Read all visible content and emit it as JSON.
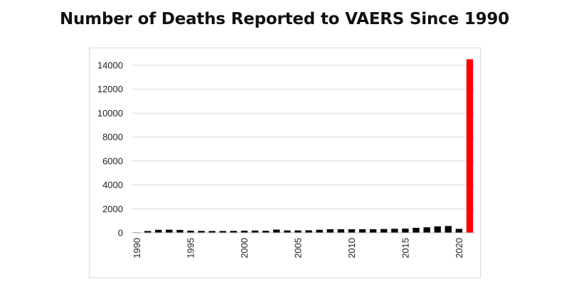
{
  "chart_data": {
    "type": "bar",
    "title": "Number of Deaths Reported to VAERS Since 1990",
    "xlabel": "",
    "ylabel": "",
    "ylim": [
      0,
      15000
    ],
    "y_ticks": [
      0,
      2000,
      4000,
      6000,
      8000,
      10000,
      12000,
      14000
    ],
    "x_tick_labels": [
      "1990",
      "1995",
      "2000",
      "2005",
      "2010",
      "2015",
      "2020"
    ],
    "grid": true,
    "legend": "none",
    "categories": [
      1990,
      1991,
      1992,
      1993,
      1994,
      1995,
      1996,
      1997,
      1998,
      1999,
      2000,
      2001,
      2002,
      2003,
      2004,
      2005,
      2006,
      2007,
      2008,
      2009,
      2010,
      2011,
      2012,
      2013,
      2014,
      2015,
      2016,
      2017,
      2018,
      2019,
      2020,
      2021
    ],
    "values": [
      40,
      150,
      250,
      260,
      240,
      180,
      160,
      150,
      150,
      160,
      180,
      190,
      170,
      270,
      200,
      200,
      210,
      250,
      300,
      300,
      300,
      300,
      300,
      320,
      340,
      350,
      420,
      460,
      540,
      570,
      330,
      14500
    ],
    "colors": {
      "default": "#000000",
      "highlight": "#ff0000",
      "highlight_category": 2021
    }
  }
}
